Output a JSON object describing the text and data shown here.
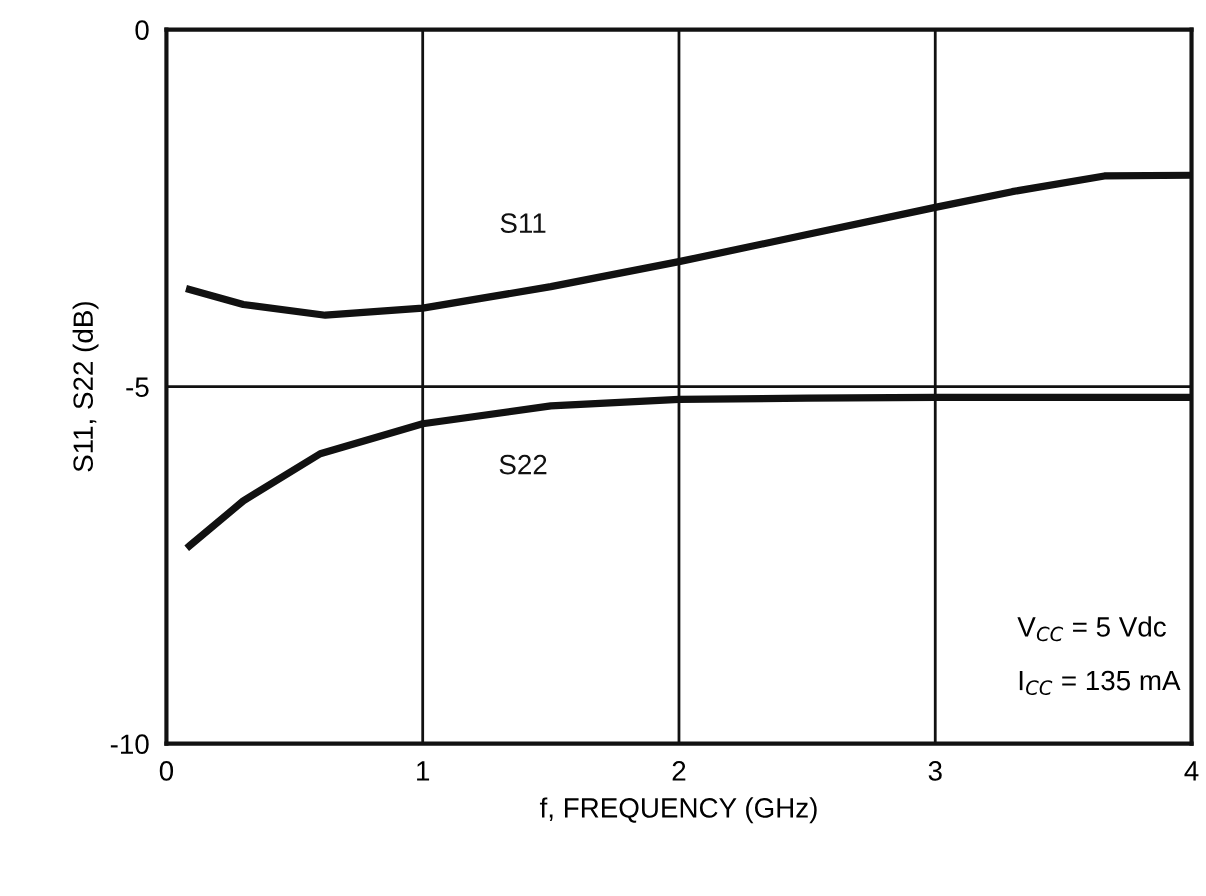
{
  "chart_data": {
    "type": "line",
    "xlabel": "f, FREQUENCY (GHz)",
    "ylabel": "S11, S22 (dB)",
    "xlim": [
      0,
      4
    ],
    "ylim": [
      -10,
      0
    ],
    "xticks": [
      0,
      1,
      2,
      3,
      4
    ],
    "yticks": [
      -10,
      -5,
      0
    ],
    "grid": true,
    "line_style": "solid",
    "series": [
      {
        "name": "S11",
        "color": "#111111",
        "x": [
          0.09,
          0.3,
          0.62,
          1.0,
          1.5,
          2.0,
          2.5,
          3.0,
          3.3,
          3.66,
          4.0
        ],
        "values": [
          -3.64,
          -3.85,
          -4.0,
          -3.9,
          -3.6,
          -3.25,
          -2.87,
          -2.49,
          -2.27,
          -2.05,
          -2.04
        ]
      },
      {
        "name": "S22",
        "color": "#111111",
        "x": [
          0.09,
          0.3,
          0.6,
          1.0,
          1.5,
          2.0,
          2.5,
          3.0,
          3.5,
          4.0
        ],
        "values": [
          -7.23,
          -6.6,
          -5.94,
          -5.52,
          -5.27,
          -5.18,
          -5.16,
          -5.15,
          -5.15,
          -5.15
        ]
      }
    ],
    "annotations": [
      "V$_{CC}$ = 5 Vdc",
      "I$_{CC}$ = 135 mA"
    ]
  }
}
